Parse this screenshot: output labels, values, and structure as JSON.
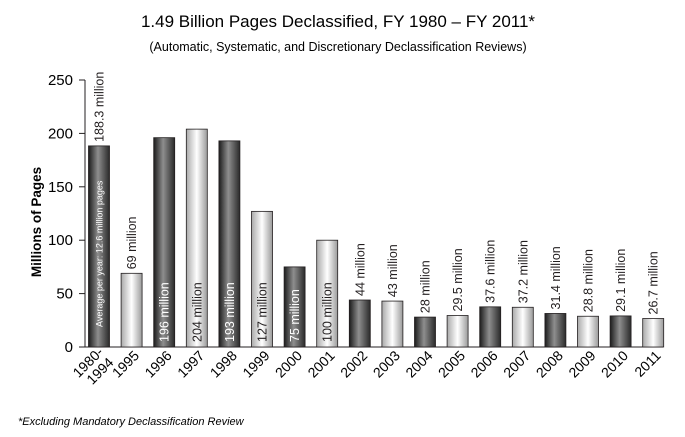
{
  "chart_data": {
    "type": "bar",
    "title": "1.49 Billion Pages Declassified, FY 1980 – FY 2011*",
    "subtitle": "(Automatic, Systematic, and Discretionary Declassification Reviews)",
    "ylabel": "Millions of Pages",
    "ylim": [
      0,
      250
    ],
    "yticks": [
      "0",
      "50",
      "100",
      "150",
      "200",
      "250"
    ],
    "grid": false,
    "categories": [
      "1980-1994",
      "1995",
      "1996",
      "1997",
      "1998",
      "1999",
      "2000",
      "2001",
      "2002",
      "2003",
      "2004",
      "2005",
      "2006",
      "2007",
      "2008",
      "2009",
      "2010",
      "2011"
    ],
    "category_lines": [
      [
        "1980-",
        "1994"
      ],
      [
        "1995"
      ],
      [
        "1996"
      ],
      [
        "1997"
      ],
      [
        "1998"
      ],
      [
        "1999"
      ],
      [
        "2000"
      ],
      [
        "2001"
      ],
      [
        "2002"
      ],
      [
        "2003"
      ],
      [
        "2004"
      ],
      [
        "2005"
      ],
      [
        "2006"
      ],
      [
        "2007"
      ],
      [
        "2008"
      ],
      [
        "2009"
      ],
      [
        "2010"
      ],
      [
        "2011"
      ]
    ],
    "values": [
      188.3,
      69,
      196,
      204,
      193,
      127,
      75,
      100,
      44,
      43,
      28,
      29.5,
      37.6,
      37.2,
      31.4,
      28.8,
      29.1,
      26.7
    ],
    "labels": [
      "188.3 million",
      "69 million",
      "196 million",
      "204 million",
      "193 million",
      "127 million",
      "75 million",
      "100 million",
      "44 million",
      "43 million",
      "28 million",
      "29.5 million",
      "37.6 million",
      "37.2 million",
      "31.4 million",
      "28.8 million",
      "29.1 million",
      "26.7 million"
    ],
    "shades": [
      "dark",
      "light",
      "dark",
      "light",
      "dark",
      "light",
      "dark",
      "light",
      "dark",
      "light",
      "dark",
      "light",
      "dark",
      "light",
      "dark",
      "light",
      "dark",
      "light"
    ],
    "inside_note": "Average per year: 12.6 million pages",
    "footnote": "*Excluding Mandatory Declassification Review"
  }
}
